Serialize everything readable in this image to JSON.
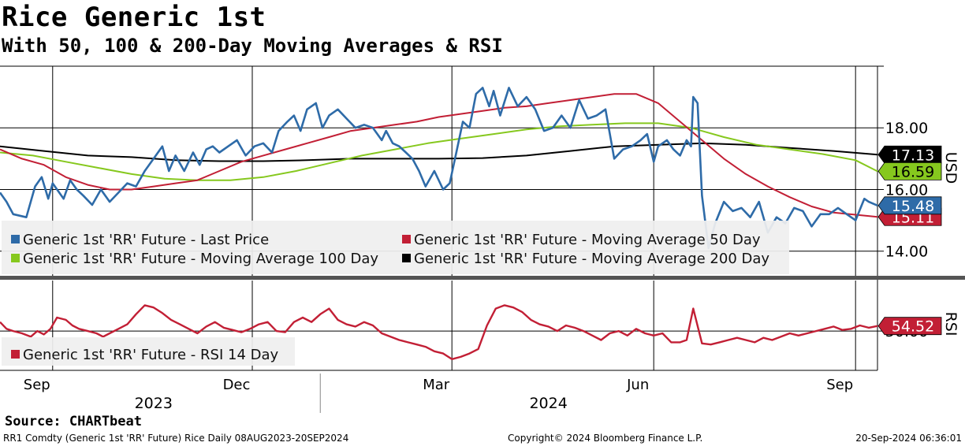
{
  "title": "Rice Generic 1st",
  "subtitle": "With 50, 100 & 200-Day Moving Averages & RSI",
  "source": "Source: CHARTbeat",
  "footer": {
    "left": "RR1 Comdty (Generic 1st 'RR' Future) Rice  Daily 08AUG2023-20SEP2024",
    "middle": "Copyright© 2024 Bloomberg Finance L.P.",
    "right": "20-Sep-2024 06:36:01"
  },
  "colors": {
    "last_price": "#2e6ba8",
    "ma50": "#c21f35",
    "ma100": "#86c81e",
    "ma200": "#000000",
    "rsi": "#c21f35"
  },
  "chart_data": [
    {
      "type": "line",
      "panel": "price",
      "ylabel": "USD",
      "yticks": [
        14.0,
        16.0,
        18.0
      ],
      "ytick_labels": [
        "14.00",
        "16.00",
        "18.00"
      ],
      "ylim": [
        13.2,
        20.0
      ],
      "x_start": 0,
      "x_end": 400,
      "x_unit": "day offset from 08 Aug 2023",
      "xticks": [
        {
          "label": "Sep",
          "x": 24
        },
        {
          "label": "Dec",
          "x": 115
        },
        {
          "label": "Mar",
          "x": 206
        },
        {
          "label": "Jun",
          "x": 298
        },
        {
          "label": "Sep",
          "x": 390
        }
      ],
      "year_labels": [
        {
          "label": "2023",
          "x": 70
        },
        {
          "label": "2024",
          "x": 250
        }
      ],
      "year_divider_x": 146,
      "legend": [
        "Generic 1st 'RR' Future - Last Price",
        "Generic 1st 'RR' Future - Moving Average 50 Day",
        "Generic 1st 'RR' Future - Moving Average 100 Day",
        "Generic 1st 'RR' Future - Moving Average 200 Day"
      ],
      "series": [
        {
          "name": "Generic 1st 'RR' Future - Last Price",
          "last_value_label": "15.48",
          "x": [
            0,
            3,
            6,
            12,
            16,
            19,
            22,
            24,
            29,
            32,
            35,
            38,
            42,
            46,
            50,
            54,
            58,
            62,
            66,
            70,
            74,
            77,
            80,
            84,
            88,
            91,
            94,
            97,
            100,
            104,
            108,
            112,
            116,
            120,
            124,
            127,
            131,
            134,
            137,
            140,
            144,
            147,
            150,
            154,
            158,
            162,
            166,
            170,
            174,
            176,
            179,
            182,
            185,
            188,
            191,
            194,
            198,
            202,
            205,
            208,
            211,
            214,
            217,
            220,
            223,
            225,
            228,
            232,
            236,
            240,
            244,
            248,
            252,
            256,
            260,
            264,
            268,
            272,
            276,
            280,
            284,
            288,
            292,
            295,
            298,
            300,
            304,
            307,
            310,
            313,
            315,
            316,
            318,
            320,
            323,
            326,
            330,
            334,
            338,
            342,
            346,
            350,
            354,
            358,
            362,
            366,
            370,
            374,
            378,
            382,
            386,
            390,
            394,
            396,
            400
          ],
          "values": [
            15.9,
            15.6,
            15.2,
            15.1,
            16.1,
            16.4,
            15.7,
            16.2,
            15.7,
            16.3,
            16.0,
            15.8,
            15.5,
            16.0,
            15.6,
            15.9,
            16.2,
            16.1,
            16.6,
            17.0,
            17.4,
            16.6,
            17.1,
            16.6,
            17.2,
            16.8,
            17.3,
            17.4,
            17.2,
            17.4,
            17.6,
            17.1,
            17.4,
            17.5,
            17.2,
            17.9,
            18.2,
            18.4,
            17.9,
            18.6,
            18.8,
            18.0,
            18.4,
            18.6,
            18.3,
            18.0,
            18.1,
            18.0,
            17.6,
            17.9,
            17.5,
            17.4,
            17.2,
            17.0,
            16.6,
            16.1,
            16.6,
            16.0,
            16.2,
            17.2,
            18.2,
            18.0,
            19.1,
            19.3,
            18.7,
            19.2,
            18.4,
            19.3,
            18.7,
            19.0,
            18.6,
            17.9,
            18.0,
            18.4,
            18.0,
            18.9,
            18.3,
            18.4,
            18.6,
            17.0,
            17.3,
            17.4,
            17.6,
            17.8,
            16.9,
            17.4,
            17.6,
            17.3,
            17.1,
            17.6,
            17.4,
            19.0,
            18.8,
            15.8,
            14.1,
            14.9,
            15.6,
            15.3,
            15.4,
            15.1,
            15.6,
            14.6,
            15.1,
            14.9,
            15.4,
            15.3,
            14.8,
            15.2,
            15.2,
            15.4,
            15.2,
            15.0,
            15.7,
            15.6,
            15.48
          ]
        },
        {
          "name": "Generic 1st 'RR' Future - Moving Average 50 Day",
          "last_value_label": "15.11",
          "x": [
            0,
            10,
            20,
            30,
            40,
            50,
            60,
            70,
            80,
            90,
            100,
            110,
            120,
            130,
            140,
            150,
            160,
            170,
            180,
            190,
            200,
            210,
            220,
            230,
            240,
            250,
            260,
            270,
            280,
            290,
            300,
            310,
            320,
            330,
            340,
            350,
            360,
            370,
            380,
            390,
            400
          ],
          "values": [
            17.3,
            17.0,
            16.8,
            16.4,
            16.15,
            16.0,
            16.0,
            16.1,
            16.2,
            16.3,
            16.6,
            16.9,
            17.1,
            17.3,
            17.5,
            17.7,
            17.9,
            18.0,
            18.1,
            18.2,
            18.35,
            18.45,
            18.55,
            18.65,
            18.7,
            18.8,
            18.9,
            19.0,
            19.1,
            19.1,
            18.8,
            18.2,
            17.6,
            17.0,
            16.5,
            16.1,
            15.75,
            15.45,
            15.25,
            15.18,
            15.11
          ]
        },
        {
          "name": "Generic 1st 'RR' Future - Moving Average 100 Day",
          "last_value_label": "16.59",
          "x": [
            0,
            15,
            30,
            45,
            60,
            75,
            90,
            105,
            120,
            135,
            150,
            165,
            180,
            195,
            210,
            225,
            240,
            255,
            270,
            285,
            300,
            315,
            330,
            345,
            360,
            375,
            390,
            400
          ],
          "values": [
            17.2,
            17.1,
            16.9,
            16.7,
            16.5,
            16.35,
            16.3,
            16.3,
            16.4,
            16.6,
            16.85,
            17.1,
            17.3,
            17.5,
            17.65,
            17.8,
            17.95,
            18.05,
            18.1,
            18.15,
            18.15,
            18.0,
            17.7,
            17.45,
            17.3,
            17.15,
            16.95,
            16.59
          ]
        },
        {
          "name": "Generic 1st 'RR' Future - Moving Average 200 Day",
          "last_value_label": "17.13",
          "x": [
            0,
            20,
            40,
            60,
            80,
            100,
            120,
            140,
            160,
            180,
            200,
            220,
            240,
            260,
            280,
            300,
            320,
            340,
            360,
            380,
            400
          ],
          "values": [
            17.4,
            17.25,
            17.1,
            17.05,
            16.95,
            16.92,
            16.92,
            16.95,
            17.0,
            17.0,
            17.0,
            17.02,
            17.1,
            17.25,
            17.4,
            17.45,
            17.5,
            17.45,
            17.35,
            17.25,
            17.13
          ]
        }
      ]
    },
    {
      "type": "line",
      "panel": "rsi",
      "ylabel": "RSI",
      "ylim": [
        15,
        95
      ],
      "yticks": [
        50
      ],
      "ytick_labels": [
        "50.00"
      ],
      "legend": [
        "Generic 1st 'RR' Future - RSI 14 Day"
      ],
      "series": [
        {
          "name": "Generic 1st 'RR' Future - RSI 14 Day",
          "last_value_label": "54.52",
          "x": [
            0,
            3,
            6,
            10,
            14,
            17,
            20,
            23,
            26,
            30,
            33,
            36,
            40,
            44,
            47,
            50,
            54,
            58,
            62,
            66,
            70,
            74,
            78,
            82,
            86,
            90,
            94,
            98,
            102,
            106,
            110,
            114,
            118,
            122,
            126,
            130,
            134,
            138,
            142,
            146,
            150,
            154,
            158,
            162,
            166,
            170,
            174,
            178,
            182,
            186,
            190,
            194,
            198,
            202,
            206,
            210,
            214,
            218,
            222,
            226,
            230,
            234,
            238,
            242,
            246,
            250,
            254,
            258,
            262,
            266,
            270,
            274,
            278,
            282,
            286,
            290,
            294,
            298,
            302,
            306,
            310,
            313,
            316,
            320,
            324,
            328,
            332,
            336,
            340,
            344,
            348,
            352,
            356,
            360,
            364,
            368,
            372,
            376,
            380,
            384,
            388,
            392,
            396,
            400
          ],
          "values": [
            58,
            52,
            50,
            48,
            45,
            50,
            47,
            52,
            62,
            60,
            55,
            52,
            50,
            48,
            45,
            48,
            52,
            56,
            65,
            73,
            71,
            66,
            60,
            56,
            52,
            48,
            54,
            58,
            53,
            51,
            49,
            52,
            56,
            58,
            50,
            49,
            58,
            62,
            58,
            65,
            70,
            60,
            56,
            54,
            58,
            55,
            48,
            45,
            42,
            40,
            38,
            36,
            32,
            30,
            25,
            27,
            30,
            34,
            55,
            70,
            73,
            71,
            67,
            60,
            56,
            54,
            50,
            55,
            53,
            50,
            46,
            42,
            48,
            50,
            46,
            52,
            48,
            46,
            48,
            40,
            40,
            42,
            70,
            39,
            38,
            40,
            42,
            44,
            42,
            40,
            44,
            42,
            45,
            48,
            46,
            48,
            50,
            52,
            54,
            51,
            52,
            55,
            53,
            54.52
          ]
        }
      ]
    }
  ]
}
